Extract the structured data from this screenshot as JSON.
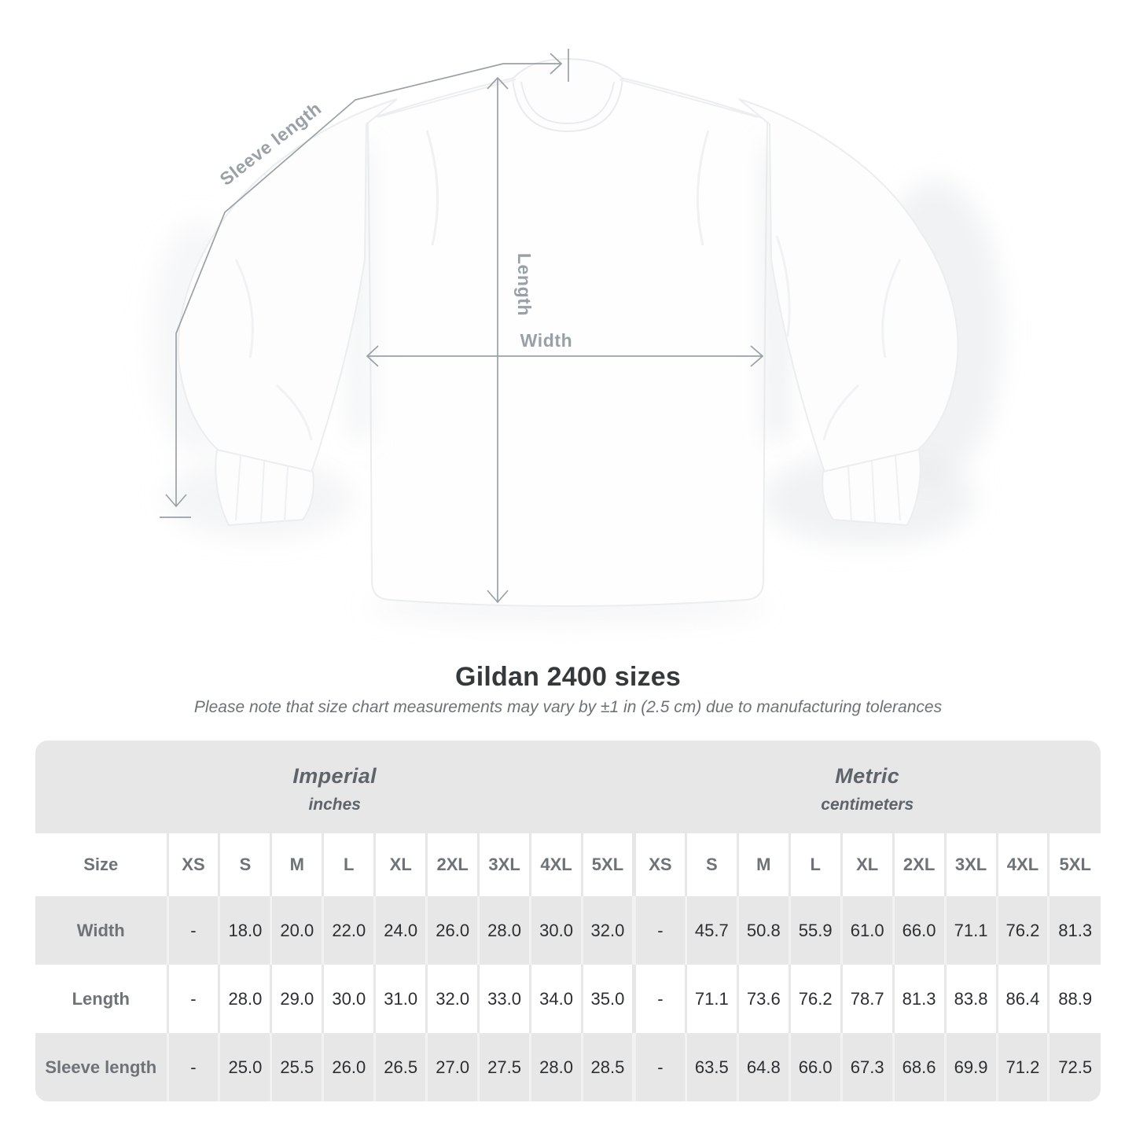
{
  "diagram": {
    "labels": {
      "sleeve_length": "Sleeve length",
      "length": "Length",
      "width": "Width"
    },
    "line_color": "#9aa1a7"
  },
  "title": "Gildan 2400 sizes",
  "note": "Please note that size chart measurements may vary by ±1 in (2.5 cm) due to manufacturing tolerances",
  "table": {
    "sections": [
      {
        "label": "Imperial",
        "unit": "inches"
      },
      {
        "label": "Metric",
        "unit": "centimeters"
      }
    ],
    "size_header": "Size",
    "sizes": [
      "XS",
      "S",
      "M",
      "L",
      "XL",
      "2XL",
      "3XL",
      "4XL",
      "5XL"
    ],
    "rows": [
      {
        "label": "Width",
        "imperial": [
          "-",
          "18.0",
          "20.0",
          "22.0",
          "24.0",
          "26.0",
          "28.0",
          "30.0",
          "32.0"
        ],
        "metric": [
          "-",
          "45.7",
          "50.8",
          "55.9",
          "61.0",
          "66.0",
          "71.1",
          "76.2",
          "81.3"
        ]
      },
      {
        "label": "Length",
        "imperial": [
          "-",
          "28.0",
          "29.0",
          "30.0",
          "31.0",
          "32.0",
          "33.0",
          "34.0",
          "35.0"
        ],
        "metric": [
          "-",
          "71.1",
          "73.6",
          "76.2",
          "78.7",
          "81.3",
          "83.8",
          "86.4",
          "88.9"
        ]
      },
      {
        "label": "Sleeve length",
        "imperial": [
          "-",
          "25.0",
          "25.5",
          "26.0",
          "26.5",
          "27.0",
          "27.5",
          "28.0",
          "28.5"
        ],
        "metric": [
          "-",
          "63.5",
          "64.8",
          "66.0",
          "67.3",
          "68.6",
          "69.9",
          "71.2",
          "72.5"
        ]
      }
    ],
    "colors": {
      "row_gray": "#e7e7e7",
      "row_white": "#ffffff",
      "value_text": "#2c2f32",
      "label_text": "#6d7378"
    }
  }
}
